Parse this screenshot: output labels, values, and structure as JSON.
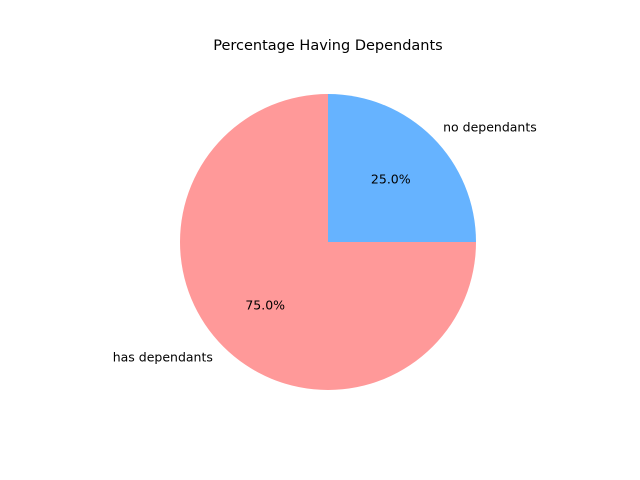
{
  "chart_data": {
    "type": "pie",
    "title": "Percentage Having Dependants",
    "categories": [
      "no dependants",
      "has dependants"
    ],
    "values": [
      25.0,
      75.0
    ],
    "value_labels": [
      "25.0%",
      "75.0%"
    ],
    "colors": [
      "#66b3ff",
      "#ff9999"
    ],
    "start_angle_deg": 0,
    "direction": "counterclockwise",
    "legend": "none"
  }
}
